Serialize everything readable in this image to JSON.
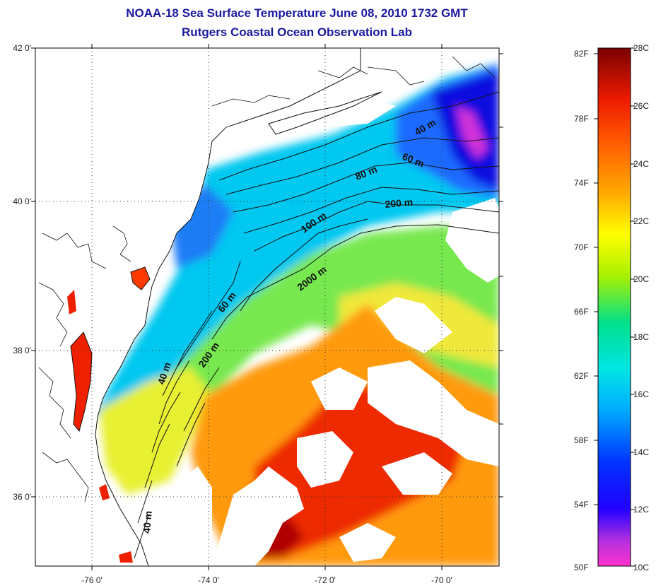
{
  "title": {
    "line1": "NOAA-18 Sea Surface Temperature June 08, 2010 1732 GMT",
    "line2": "Rutgers Coastal Ocean Observation Lab"
  },
  "map": {
    "lat_labels": [
      "42 0'",
      "40 0'",
      "38 0'",
      "36 0'"
    ],
    "lon_labels": [
      "-76 0'",
      "-74 0'",
      "-72 0'",
      "-70 0'"
    ],
    "contour_labels": [
      "40 m",
      "60 m",
      "80 m",
      "200 m",
      "100 m",
      "2000 m",
      "60 m",
      "200 m",
      "40 m",
      "40 m"
    ]
  },
  "colorbar": {
    "fahrenheit_labels": [
      "82F",
      "78F",
      "74F",
      "70F",
      "66F",
      "62F",
      "58F",
      "54F",
      "50F"
    ],
    "celsius_labels": [
      "28C",
      "26C",
      "24C",
      "22C",
      "20C",
      "18C",
      "16C",
      "14C",
      "12C",
      "10C"
    ],
    "colors": [
      "#ff33cc",
      "#8a2be2",
      "#0000ff",
      "#00aaff",
      "#00e5e5",
      "#00e08a",
      "#a8f000",
      "#ffff00",
      "#ffaa00",
      "#ff5a00",
      "#ee1b00",
      "#b00000",
      "#7a0000"
    ]
  }
}
